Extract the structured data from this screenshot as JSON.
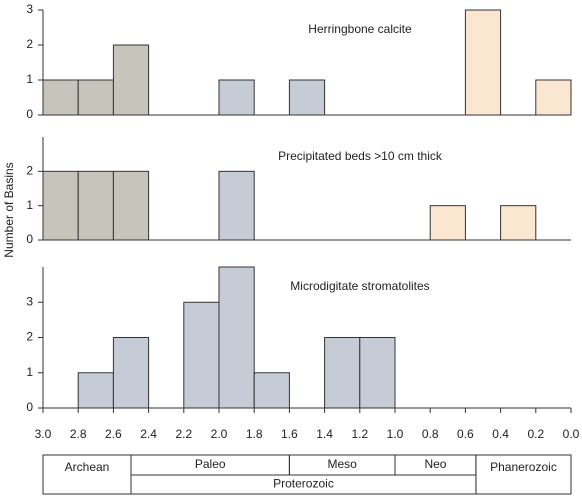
{
  "chart_data": [
    {
      "type": "histogram",
      "title": "Herringbone calcite",
      "bins": [
        3,
        2.8,
        2.6,
        2.4,
        2.2,
        2,
        1.8,
        1.6,
        1.4,
        1.2,
        1,
        0.8,
        0.6,
        0.4,
        0.2,
        0
      ],
      "values": [
        1,
        1,
        2,
        0,
        0,
        1,
        0,
        1,
        0,
        0,
        0,
        0,
        3,
        0,
        1
      ],
      "colors": [
        "#c7c5bb",
        "#c7c5bb",
        "#c7c5bb",
        "#c5ccd5",
        "#c5ccd5",
        "#c5ccd5",
        "#c5ccd5",
        "#c5ccd5",
        "#c5ccd5",
        "#c5ccd5",
        "#c5ccd5",
        "#c5ccd5",
        "#fbe6d2",
        "#fbe6d2",
        "#fbe6d2"
      ],
      "xlim": [
        3,
        0
      ],
      "ylim": [
        0,
        3
      ],
      "yticks": [
        0,
        1,
        2,
        3
      ]
    },
    {
      "type": "histogram",
      "title": "Precipitated beds >10 cm thick",
      "bins": [
        3,
        2.8,
        2.6,
        2.4,
        2.2,
        2,
        1.8,
        1.6,
        1.4,
        1.2,
        1,
        0.8,
        0.6,
        0.4,
        0.2,
        0
      ],
      "values": [
        2,
        2,
        2,
        0,
        0,
        2,
        0,
        0,
        0,
        0,
        0,
        1,
        0,
        1,
        0
      ],
      "colors": [
        "#c7c5bb",
        "#c7c5bb",
        "#c7c5bb",
        "#c5ccd5",
        "#c5ccd5",
        "#c5ccd5",
        "#c5ccd5",
        "#c5ccd5",
        "#c5ccd5",
        "#c5ccd5",
        "#c5ccd5",
        "#fbe6d2",
        "#fbe6d2",
        "#fbe6d2",
        "#fbe6d2"
      ],
      "xlim": [
        3,
        0
      ],
      "ylim": [
        0,
        3
      ],
      "yticks": [
        0,
        1,
        2
      ]
    },
    {
      "type": "histogram",
      "title": "Microdigitate stromatolites",
      "bins": [
        3,
        2.8,
        2.6,
        2.4,
        2.2,
        2,
        1.8,
        1.6,
        1.4,
        1.2,
        1,
        0.8,
        0.6,
        0.4,
        0.2,
        0
      ],
      "values": [
        0,
        1,
        2,
        0,
        3,
        4,
        1,
        0,
        2,
        2,
        0,
        0,
        0,
        0,
        0
      ],
      "colors": [
        "#c5ccd5",
        "#c5ccd5",
        "#c5ccd5",
        "#c5ccd5",
        "#c5ccd5",
        "#c5ccd5",
        "#c5ccd5",
        "#c5ccd5",
        "#c5ccd5",
        "#c5ccd5",
        "#c5ccd5",
        "#c5ccd5",
        "#c5ccd5",
        "#c5ccd5",
        "#c5ccd5"
      ],
      "xlim": [
        3,
        0
      ],
      "ylim": [
        0,
        4
      ],
      "yticks": [
        0,
        1,
        2,
        3
      ],
      "xticks": [
        {
          "value": 3,
          "label": "3.0"
        },
        2.8,
        2.6,
        2.4,
        2.2,
        {
          "value": 2,
          "label": "2.0"
        },
        1.8,
        1.6,
        1.4,
        1.2,
        {
          "value": 1,
          "label": "1.0"
        },
        0.8,
        0.6,
        0.4,
        0.2,
        {
          "value": 0,
          "label": "0.0"
        }
      ]
    }
  ],
  "y_label": "Number of Basins",
  "timescale": {
    "eons": [
      {
        "label": "Archean",
        "start": 3,
        "end": 2.5
      },
      {
        "label": "Proterozoic",
        "start": 2.5,
        "end": 0.54
      },
      {
        "label": "Phanerozoic",
        "start": 0.54,
        "end": 0
      }
    ],
    "eras": [
      {
        "label": "Paleo",
        "start": 2.5,
        "end": 1.6
      },
      {
        "label": "Meso",
        "start": 1.6,
        "end": 1
      },
      {
        "label": "Neo",
        "start": 1,
        "end": 0.54
      }
    ]
  }
}
